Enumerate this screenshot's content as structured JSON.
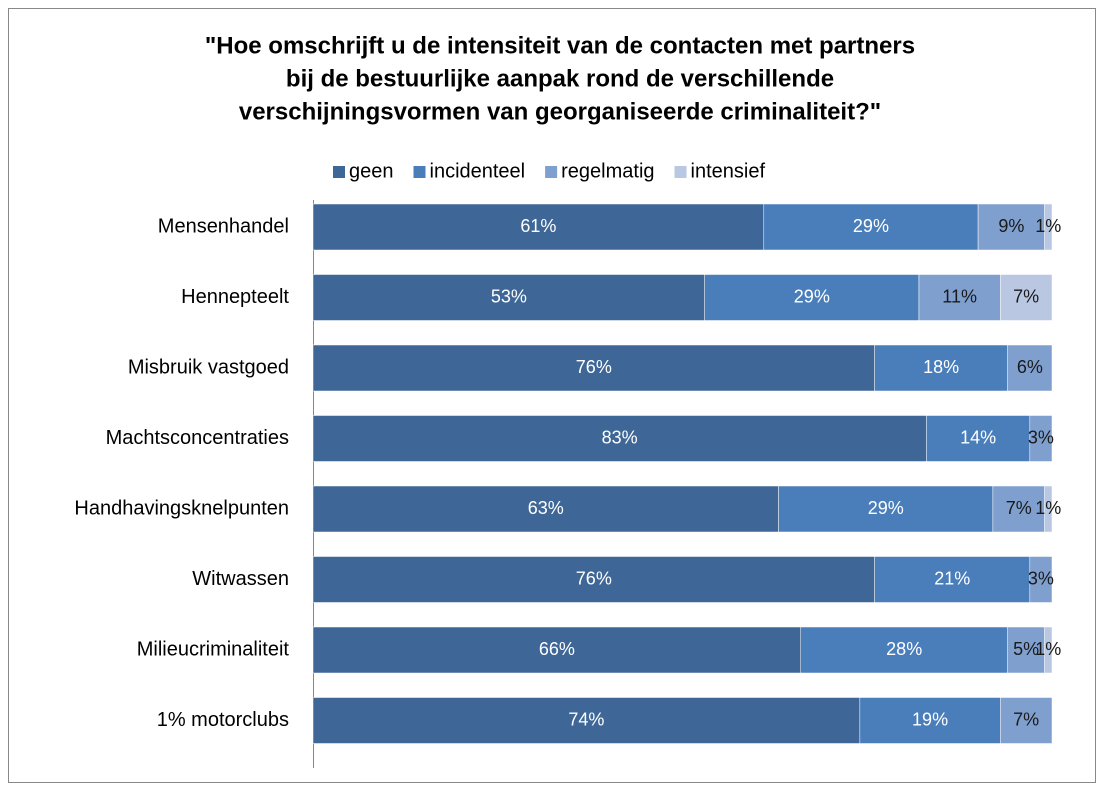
{
  "chart_data": {
    "type": "stacked-bar-horizontal",
    "title": [
      "\"Hoe omschrijft u de intensiteit van de contacten met partners",
      "bij de bestuurlijke aanpak rond de verschillende",
      "verschijningsvormen van georganiseerde criminaliteit?\""
    ],
    "categories": [
      "Mensenhandel",
      "Hennepteelt",
      "Misbruik vastgoed",
      "Machtsconcentraties",
      "Handhavingsknelpunten",
      "Witwassen",
      "Milieucriminaliteit",
      "1% motorclubs"
    ],
    "xlim": [
      0,
      100
    ],
    "legend": "top",
    "series": [
      {
        "name": "geen",
        "color": "#3e6797",
        "label_color": "#ffffff",
        "values": [
          61,
          53,
          76,
          83,
          63,
          76,
          66,
          74
        ],
        "value_labels": [
          "61%",
          "53%",
          "76%",
          "83%",
          "63%",
          "76%",
          "66%",
          "74%"
        ]
      },
      {
        "name": "incidenteel",
        "color": "#4a7ebb",
        "label_color": "#ffffff",
        "values": [
          29,
          29,
          18,
          14,
          29,
          21,
          28,
          19
        ],
        "value_labels": [
          "29%",
          "29%",
          "18%",
          "14%",
          "29%",
          "21%",
          "28%",
          "19%"
        ]
      },
      {
        "name": "regelmatig",
        "color": "#7f9fcf",
        "label_color": "#1a1a1a",
        "values": [
          9,
          11,
          6,
          3,
          7,
          3,
          5,
          7
        ],
        "value_labels": [
          "9%",
          "11%",
          "6%",
          "3%",
          "7%",
          "3%",
          "5%",
          "7%"
        ]
      },
      {
        "name": "intensief",
        "color": "#b9c7e2",
        "label_color": "#1a1a1a",
        "values": [
          1,
          7,
          null,
          null,
          1,
          null,
          1,
          null
        ],
        "value_labels": [
          "1%",
          "7%",
          null,
          null,
          "1%",
          null,
          "1%",
          null
        ]
      }
    ]
  }
}
